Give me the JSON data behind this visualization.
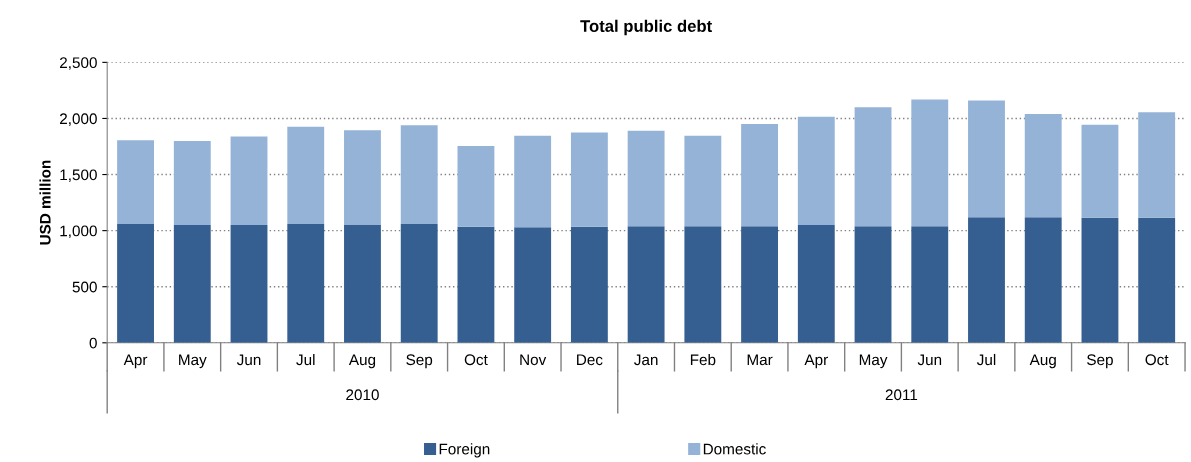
{
  "chart_data": {
    "type": "bar",
    "title": "Total public debt",
    "ylabel": "USD million",
    "stacked": true,
    "categories": [
      "Apr",
      "May",
      "Jun",
      "Jul",
      "Aug",
      "Sep",
      "Oct",
      "Nov",
      "Dec",
      "Jan",
      "Feb",
      "Mar",
      "Apr",
      "May",
      "Jun",
      "Jul",
      "Aug",
      "Sep",
      "Oct"
    ],
    "series": [
      {
        "name": "Foreign",
        "color": "#365f91",
        "values": [
          1060,
          1050,
          1050,
          1060,
          1055,
          1060,
          1035,
          1030,
          1035,
          1040,
          1040,
          1040,
          1050,
          1040,
          1040,
          1120,
          1120,
          1115,
          1115
        ]
      },
      {
        "name": "Domestic",
        "color": "#95b3d7",
        "values": [
          745,
          750,
          790,
          865,
          840,
          880,
          720,
          815,
          840,
          850,
          805,
          910,
          965,
          1060,
          1130,
          1040,
          920,
          830,
          940
        ]
      }
    ],
    "ylim": [
      0,
      2500
    ],
    "yticks": [
      {
        "value": 0,
        "label": "0"
      },
      {
        "value": 500,
        "label": "500"
      },
      {
        "value": 1000,
        "label": "1,000"
      },
      {
        "value": 1500,
        "label": "1,500"
      },
      {
        "value": 2000,
        "label": "2,000"
      },
      {
        "value": 2500,
        "label": "2,500"
      }
    ],
    "grid": "y",
    "legend": "bottom",
    "annotations": [
      "2010",
      "2011"
    ]
  }
}
